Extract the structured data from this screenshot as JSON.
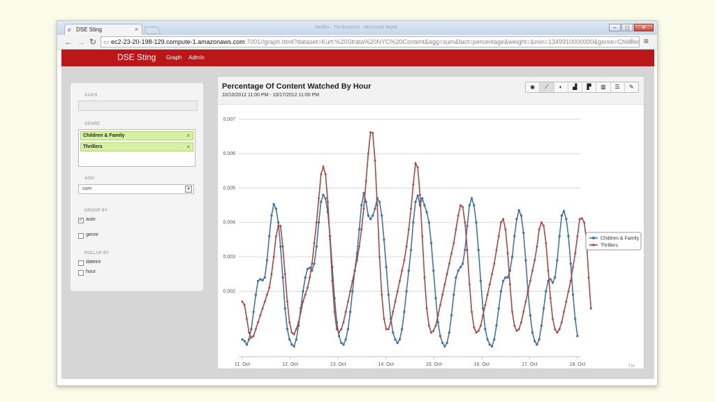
{
  "browser": {
    "tab_title": "DSE Sting",
    "tab_close": "×",
    "favicon": "ie-icon",
    "window_title": "Netflix - Tia Bruenne - Microsoft Word",
    "url_host": "ec2-23-20-198-129.compute-1.amazonaws.com",
    "url_rest": ":7001//graph.html?dataset=Kurt:%20Strata%20NYC%20Content&agg=sum&fact=percentage&weight=&min=1349910000000&genre=Childrer",
    "minimize": "–",
    "maximize": "◻",
    "close": "✕",
    "back": "←",
    "forward": "→",
    "reload": "↻",
    "star": "☆",
    "menu": "≡"
  },
  "app": {
    "brand": "DSE Sting",
    "nav": [
      "Graph",
      "Admin"
    ],
    "accent": "#bb1719"
  },
  "sidebar": {
    "xaxis_label": "XAXIS",
    "xaxis_value": "",
    "genre_label": "GENRE",
    "genres": [
      "Children & Family",
      "Thrillers"
    ],
    "remove_glyph": "×",
    "agg_label": "AGG",
    "agg_value": "sum",
    "select_arrow": "▾",
    "group_by_label": "GROUP BY",
    "group_by": [
      {
        "label": "auto",
        "checked": true
      },
      {
        "label": "genre",
        "checked": false
      }
    ],
    "rollup_label": "ROLLUP BY",
    "rollup": [
      {
        "label": "dateint",
        "checked": false
      },
      {
        "label": "hour",
        "checked": false
      }
    ],
    "check_glyph": "✓"
  },
  "chart_panel": {
    "title": "Percentage Of Content Watched By Hour",
    "range": "10/10/2012 11:00 PM - 10/17/2012 11:00 PM",
    "tools": [
      "globe-icon",
      "line-chart-icon",
      "pie-chart-icon",
      "bar-chart-icon",
      "horizontal-bar-icon",
      "columns-icon",
      "table-icon",
      "wrench-icon"
    ],
    "tool_glyphs": [
      "◉",
      "⟋",
      "◐",
      "▟",
      "▛",
      "▥",
      "☰",
      "✎"
    ],
    "active_tool": 1,
    "credit": "TIA"
  },
  "chart_data": {
    "type": "line",
    "title": "Percentage Of Content Watched By Hour",
    "xlabel": "",
    "ylabel": "",
    "x_ticks": [
      "11. Oct",
      "12. Oct",
      "13. Oct",
      "14. Oct",
      "15. Oct",
      "16. Oct",
      "17. Oct",
      "18. Oct"
    ],
    "y_ticks": [
      "0.007",
      "0.006",
      "0.005",
      "0.004",
      "0.003",
      "0.002"
    ],
    "ylim": [
      0.0001,
      0.0072
    ],
    "grid": true,
    "legend_position": "right",
    "series": [
      {
        "name": "Children & Family",
        "color": "#4572a7",
        "values": [
          0.0006,
          0.00055,
          0.00045,
          0.0006,
          0.0009,
          0.0014,
          0.0019,
          0.0023,
          0.00235,
          0.00232,
          0.0024,
          0.0029,
          0.0036,
          0.0042,
          0.00453,
          0.0044,
          0.004,
          0.0033,
          0.0024,
          0.0015,
          0.0009,
          0.0006,
          0.00045,
          0.0004,
          0.0006,
          0.001,
          0.0015,
          0.002,
          0.0024,
          0.00265,
          0.00268,
          0.0026,
          0.0028,
          0.0033,
          0.004,
          0.0046,
          0.0048,
          0.0047,
          0.0043,
          0.0036,
          0.0027,
          0.0018,
          0.0011,
          0.0007,
          0.0005,
          0.00045,
          0.0006,
          0.0009,
          0.0014,
          0.002,
          0.0026,
          0.0031,
          0.0038,
          0.0045,
          0.00485,
          0.0046,
          0.0042,
          0.0041,
          0.0042,
          0.0044,
          0.0047,
          0.0046,
          0.0042,
          0.0035,
          0.0027,
          0.0019,
          0.0012,
          0.0008,
          0.0006,
          0.0005,
          0.0006,
          0.0009,
          0.0014,
          0.002,
          0.0026,
          0.0032,
          0.004,
          0.0046,
          0.00478,
          0.0045,
          0.0047,
          0.0045,
          0.0043,
          0.004,
          0.0034,
          0.0026,
          0.0018,
          0.0011,
          0.0007,
          0.0005,
          0.0004,
          0.0005,
          0.0008,
          0.0013,
          0.0019,
          0.0024,
          0.0026,
          0.0027,
          0.0028,
          0.0032,
          0.0039,
          0.0045,
          0.0047,
          0.0045,
          0.004,
          0.0032,
          0.0023,
          0.0015,
          0.0009,
          0.0006,
          0.00045,
          0.0004,
          0.0006,
          0.001,
          0.0015,
          0.002,
          0.0023,
          0.0024,
          0.0024,
          0.0026,
          0.003,
          0.0036,
          0.0041,
          0.00435,
          0.0042,
          0.0037,
          0.0029,
          0.002,
          0.0013,
          0.0008,
          0.00055,
          0.00045,
          0.0006,
          0.001,
          0.0015,
          0.002,
          0.0023,
          0.00235,
          0.00225,
          0.0024,
          0.0029,
          0.0036,
          0.0042,
          0.00433,
          0.0041,
          0.0036,
          0.0028,
          0.0019,
          0.0012,
          0.0007
        ]
      },
      {
        "name": "Thrillers",
        "color": "#aa4643",
        "values": [
          0.0017,
          0.0016,
          0.0012,
          0.0008,
          0.00065,
          0.0007,
          0.0009,
          0.0011,
          0.0013,
          0.0015,
          0.0017,
          0.0019,
          0.0021,
          0.0025,
          0.003,
          0.0036,
          0.0039,
          0.0039,
          0.0033,
          0.0025,
          0.0017,
          0.0011,
          0.0008,
          0.00075,
          0.0009,
          0.0011,
          0.0014,
          0.0017,
          0.0019,
          0.0021,
          0.0024,
          0.0028,
          0.0034,
          0.004,
          0.0047,
          0.0054,
          0.00562,
          0.0054,
          0.0046,
          0.0035,
          0.0023,
          0.0014,
          0.0009,
          0.0008,
          0.0009,
          0.0011,
          0.0014,
          0.0017,
          0.002,
          0.0023,
          0.0026,
          0.0029,
          0.0033,
          0.0038,
          0.0044,
          0.0052,
          0.006,
          0.00662,
          0.0066,
          0.0058,
          0.0045,
          0.003,
          0.0019,
          0.0012,
          0.0009,
          0.0009,
          0.0011,
          0.0014,
          0.0017,
          0.002,
          0.0023,
          0.0026,
          0.0029,
          0.0033,
          0.0038,
          0.0044,
          0.0051,
          0.00572,
          0.0056,
          0.0048,
          0.0036,
          0.0024,
          0.0015,
          0.001,
          0.0008,
          0.00085,
          0.001,
          0.0013,
          0.0016,
          0.0019,
          0.0022,
          0.0025,
          0.0028,
          0.0031,
          0.0034,
          0.0038,
          0.0042,
          0.0045,
          0.00445,
          0.004,
          0.0032,
          0.0022,
          0.0014,
          0.00095,
          0.0008,
          0.00085,
          0.001,
          0.0013,
          0.0016,
          0.0019,
          0.0022,
          0.0025,
          0.0028,
          0.0032,
          0.0036,
          0.004,
          0.0041,
          0.0038,
          0.0031,
          0.0022,
          0.0014,
          0.001,
          0.00085,
          0.0009,
          0.0011,
          0.0014,
          0.0017,
          0.002,
          0.0023,
          0.0026,
          0.0029,
          0.0033,
          0.0038,
          0.004,
          0.0039,
          0.0034,
          0.0026,
          0.0018,
          0.0012,
          0.0009,
          0.0008,
          0.0009,
          0.0011,
          0.0014,
          0.0017,
          0.002,
          0.0023,
          0.0027,
          0.0031,
          0.0036,
          0.0041,
          0.00412,
          0.004,
          0.0035,
          0.0024,
          0.0015
        ]
      }
    ]
  }
}
